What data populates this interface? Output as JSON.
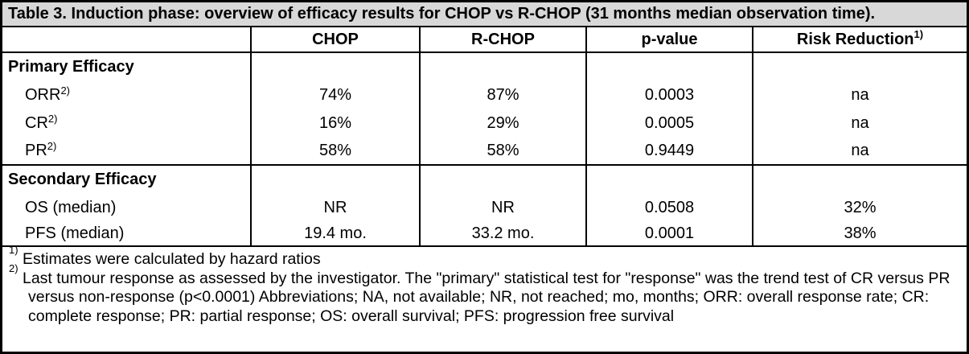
{
  "table": {
    "title": "Table 3. Induction phase: overview of efficacy results for CHOP vs R-CHOP (31 months median observation time).",
    "header": {
      "col0": "",
      "chop": "CHOP",
      "rchop": "R-CHOP",
      "pvalue": "p-value",
      "risk_reduction": "Risk Reduction",
      "risk_reduction_sup": "1)"
    },
    "sections": [
      {
        "label": "Primary Efficacy",
        "rows": [
          {
            "label": "ORR",
            "label_sup": "2)",
            "values": [
              "74%",
              "87%",
              "0.0003",
              "na"
            ]
          },
          {
            "label": "CR",
            "label_sup": "2)",
            "values": [
              "16%",
              "29%",
              "0.0005",
              "na"
            ]
          },
          {
            "label": "PR",
            "label_sup": "2)",
            "values": [
              "58%",
              "58%",
              "0.9449",
              "na"
            ]
          }
        ]
      },
      {
        "label": "Secondary Efficacy",
        "rows": [
          {
            "label": "OS (median)",
            "label_sup": "",
            "values": [
              "NR",
              "NR",
              "0.0508",
              "32%"
            ]
          },
          {
            "label": "PFS (median)",
            "label_sup": "",
            "values": [
              "19.4 mo.",
              "33.2 mo.",
              "0.0001",
              "38%"
            ]
          }
        ]
      }
    ],
    "footnotes": [
      {
        "marker": "1)",
        "text": "Estimates were calculated by hazard ratios"
      },
      {
        "marker": "2)",
        "text": "Last tumour response as assessed by the investigator. The \"primary\" statistical test for \"response\" was the trend test of CR versus PR versus non-response (p<0.0001) Abbreviations; NA, not available; NR, not reached; mo, months; ORR: overall response rate; CR: complete response; PR: partial response; OS: overall survival; PFS: progression free survival"
      }
    ]
  }
}
